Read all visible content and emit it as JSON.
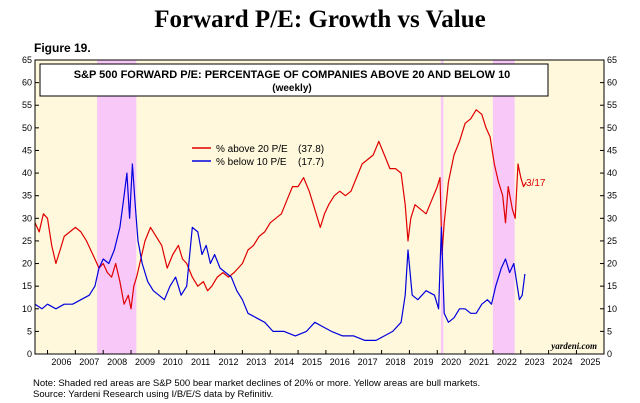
{
  "header": {
    "title": "Forward P/E: Growth vs Value",
    "figure_label": "Figure 19."
  },
  "chart_data": {
    "type": "line",
    "title": "S&P 500 FORWARD P/E: PERCENTAGE OF COMPANIES ABOVE 20 AND BELOW 10",
    "subtitle": "(weekly)",
    "xlabel": "",
    "ylabel": "",
    "ylim": [
      0,
      65
    ],
    "xlim": [
      2005.55,
      2025.99
    ],
    "yticks": [
      "0",
      "5",
      "10",
      "15",
      "20",
      "25",
      "30",
      "35",
      "40",
      "45",
      "50",
      "55",
      "60",
      "65"
    ],
    "xticks": [
      "2006",
      "2007",
      "2008",
      "2009",
      "2010",
      "2011",
      "2012",
      "2013",
      "2014",
      "2015",
      "2016",
      "2017",
      "2018",
      "2019",
      "2020",
      "2021",
      "2022",
      "2023",
      "2024",
      "2025"
    ],
    "grid": false,
    "legend_position": "center-left",
    "bear_markets": [
      {
        "start": 2007.78,
        "end": 2009.19
      },
      {
        "start": 2020.13,
        "end": 2020.22
      },
      {
        "start": 2022.0,
        "end": 2022.78
      }
    ],
    "end_label": "3/17",
    "watermark": "yardeni.com",
    "series": [
      {
        "name": "% above 20 P/E",
        "legend": "% above 20 P/E",
        "last_value": "(37.8)",
        "color": "#e00000",
        "points": [
          [
            2005.55,
            29
          ],
          [
            2005.7,
            27
          ],
          [
            2005.85,
            31
          ],
          [
            2006.0,
            30
          ],
          [
            2006.15,
            24
          ],
          [
            2006.3,
            20
          ],
          [
            2006.45,
            23
          ],
          [
            2006.6,
            26
          ],
          [
            2006.8,
            27
          ],
          [
            2007.0,
            28
          ],
          [
            2007.2,
            27
          ],
          [
            2007.4,
            25
          ],
          [
            2007.55,
            23
          ],
          [
            2007.7,
            21
          ],
          [
            2007.85,
            19
          ],
          [
            2008.0,
            20
          ],
          [
            2008.15,
            18
          ],
          [
            2008.3,
            17
          ],
          [
            2008.45,
            20
          ],
          [
            2008.6,
            16
          ],
          [
            2008.75,
            11
          ],
          [
            2008.9,
            13
          ],
          [
            2009.0,
            10
          ],
          [
            2009.1,
            15
          ],
          [
            2009.2,
            17
          ],
          [
            2009.35,
            21
          ],
          [
            2009.5,
            25
          ],
          [
            2009.7,
            28
          ],
          [
            2009.9,
            26
          ],
          [
            2010.1,
            24
          ],
          [
            2010.3,
            19
          ],
          [
            2010.5,
            22
          ],
          [
            2010.7,
            24
          ],
          [
            2010.85,
            21
          ],
          [
            2011.0,
            20
          ],
          [
            2011.2,
            17
          ],
          [
            2011.4,
            15
          ],
          [
            2011.6,
            16
          ],
          [
            2011.75,
            14
          ],
          [
            2011.9,
            15
          ],
          [
            2012.1,
            17
          ],
          [
            2012.3,
            18
          ],
          [
            2012.5,
            17
          ],
          [
            2012.7,
            18
          ],
          [
            2012.85,
            19
          ],
          [
            2013.0,
            20
          ],
          [
            2013.2,
            23
          ],
          [
            2013.4,
            24
          ],
          [
            2013.6,
            26
          ],
          [
            2013.8,
            27
          ],
          [
            2014.0,
            29
          ],
          [
            2014.2,
            30
          ],
          [
            2014.4,
            31
          ],
          [
            2014.6,
            34
          ],
          [
            2014.8,
            37
          ],
          [
            2015.0,
            37
          ],
          [
            2015.2,
            39
          ],
          [
            2015.4,
            36
          ],
          [
            2015.6,
            32
          ],
          [
            2015.8,
            28
          ],
          [
            2015.95,
            31
          ],
          [
            2016.1,
            33
          ],
          [
            2016.3,
            35
          ],
          [
            2016.5,
            36
          ],
          [
            2016.7,
            35
          ],
          [
            2016.9,
            36
          ],
          [
            2017.1,
            39
          ],
          [
            2017.3,
            42
          ],
          [
            2017.5,
            43
          ],
          [
            2017.7,
            44
          ],
          [
            2017.9,
            47
          ],
          [
            2018.1,
            44
          ],
          [
            2018.3,
            41
          ],
          [
            2018.5,
            41
          ],
          [
            2018.7,
            40
          ],
          [
            2018.85,
            33
          ],
          [
            2018.95,
            25
          ],
          [
            2019.05,
            30
          ],
          [
            2019.2,
            33
          ],
          [
            2019.4,
            32
          ],
          [
            2019.6,
            31
          ],
          [
            2019.8,
            34
          ],
          [
            2020.0,
            37
          ],
          [
            2020.1,
            39
          ],
          [
            2020.17,
            22
          ],
          [
            2020.25,
            29
          ],
          [
            2020.4,
            38
          ],
          [
            2020.6,
            44
          ],
          [
            2020.8,
            47
          ],
          [
            2021.0,
            51
          ],
          [
            2021.2,
            52
          ],
          [
            2021.4,
            54
          ],
          [
            2021.6,
            53
          ],
          [
            2021.75,
            50
          ],
          [
            2021.9,
            48
          ],
          [
            2022.05,
            42
          ],
          [
            2022.2,
            38
          ],
          [
            2022.35,
            35
          ],
          [
            2022.45,
            29
          ],
          [
            2022.55,
            37
          ],
          [
            2022.7,
            32
          ],
          [
            2022.8,
            30
          ],
          [
            2022.9,
            42
          ],
          [
            2023.0,
            39
          ],
          [
            2023.1,
            37
          ],
          [
            2023.2,
            38
          ]
        ]
      },
      {
        "name": "% below 10 P/E",
        "legend": "% below 10 P/E",
        "last_value": "(17.7)",
        "color": "#0000dd",
        "points": [
          [
            2005.55,
            11
          ],
          [
            2005.8,
            10
          ],
          [
            2006.0,
            11
          ],
          [
            2006.3,
            10
          ],
          [
            2006.6,
            11
          ],
          [
            2006.9,
            11
          ],
          [
            2007.2,
            12
          ],
          [
            2007.5,
            13
          ],
          [
            2007.7,
            15
          ],
          [
            2007.85,
            19
          ],
          [
            2008.0,
            21
          ],
          [
            2008.2,
            20
          ],
          [
            2008.4,
            23
          ],
          [
            2008.6,
            28
          ],
          [
            2008.75,
            35
          ],
          [
            2008.85,
            40
          ],
          [
            2008.95,
            30
          ],
          [
            2009.05,
            42
          ],
          [
            2009.15,
            33
          ],
          [
            2009.25,
            25
          ],
          [
            2009.4,
            20
          ],
          [
            2009.6,
            16
          ],
          [
            2009.8,
            14
          ],
          [
            2010.0,
            13
          ],
          [
            2010.2,
            12
          ],
          [
            2010.4,
            15
          ],
          [
            2010.6,
            17
          ],
          [
            2010.8,
            13
          ],
          [
            2011.0,
            15
          ],
          [
            2011.2,
            28
          ],
          [
            2011.4,
            27
          ],
          [
            2011.55,
            22
          ],
          [
            2011.7,
            24
          ],
          [
            2011.85,
            20
          ],
          [
            2012.0,
            22
          ],
          [
            2012.2,
            19
          ],
          [
            2012.4,
            18
          ],
          [
            2012.6,
            17
          ],
          [
            2012.8,
            14
          ],
          [
            2013.0,
            12
          ],
          [
            2013.2,
            9
          ],
          [
            2013.5,
            8
          ],
          [
            2013.8,
            7
          ],
          [
            2014.1,
            5
          ],
          [
            2014.5,
            5
          ],
          [
            2014.9,
            4
          ],
          [
            2015.3,
            5
          ],
          [
            2015.6,
            7
          ],
          [
            2015.9,
            6
          ],
          [
            2016.2,
            5
          ],
          [
            2016.6,
            4
          ],
          [
            2017.0,
            4
          ],
          [
            2017.4,
            3
          ],
          [
            2017.8,
            3
          ],
          [
            2018.1,
            4
          ],
          [
            2018.4,
            5
          ],
          [
            2018.7,
            7
          ],
          [
            2018.85,
            13
          ],
          [
            2018.95,
            23
          ],
          [
            2019.1,
            13
          ],
          [
            2019.3,
            12
          ],
          [
            2019.6,
            14
          ],
          [
            2019.9,
            13
          ],
          [
            2020.05,
            10
          ],
          [
            2020.15,
            28
          ],
          [
            2020.25,
            9
          ],
          [
            2020.4,
            7
          ],
          [
            2020.6,
            8
          ],
          [
            2020.8,
            10
          ],
          [
            2021.0,
            10
          ],
          [
            2021.2,
            9
          ],
          [
            2021.4,
            9
          ],
          [
            2021.6,
            11
          ],
          [
            2021.8,
            12
          ],
          [
            2021.95,
            11
          ],
          [
            2022.1,
            15
          ],
          [
            2022.3,
            19
          ],
          [
            2022.45,
            21
          ],
          [
            2022.6,
            18
          ],
          [
            2022.75,
            20
          ],
          [
            2022.85,
            16
          ],
          [
            2022.95,
            12
          ],
          [
            2023.05,
            13
          ],
          [
            2023.15,
            17.7
          ]
        ]
      }
    ]
  },
  "footnote": {
    "line1": "Note: Shaded red areas are S&P 500 bear market declines of 20% or more. Yellow areas are bull markets.",
    "line2": "Source: Yardeni Research using I/B/E/S data by Refinitiv."
  }
}
